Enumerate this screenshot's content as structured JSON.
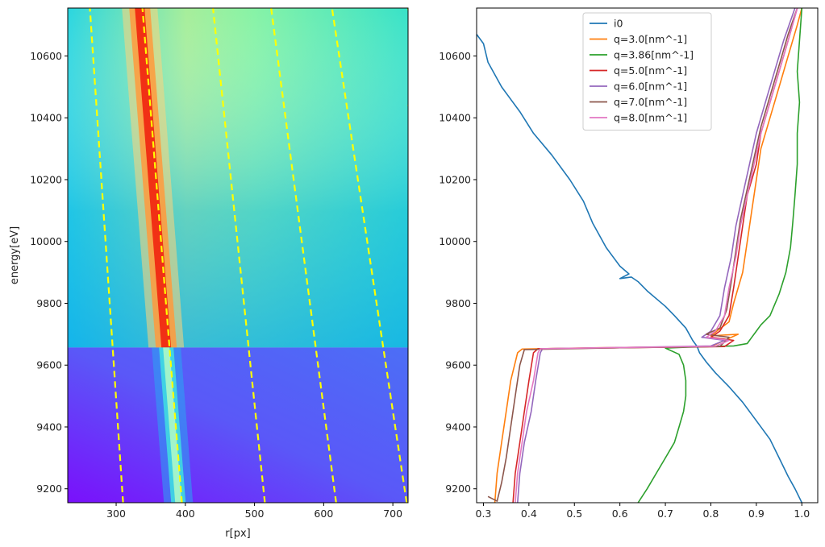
{
  "chart_data": [
    {
      "type": "heatmap",
      "xlabel": "r[px]",
      "ylabel": "energy[eV]",
      "xlim": [
        230,
        722
      ],
      "ylim": [
        9155,
        10755
      ],
      "xticks": [
        300,
        400,
        500,
        600,
        700
      ],
      "yticks": [
        9200,
        9400,
        9600,
        9800,
        10000,
        10200,
        10400,
        10600
      ],
      "colormap": "rainbow",
      "edge_energy": 9657,
      "ridge": {
        "r_at_ymin": 390,
        "r_at_ymax": 334
      },
      "dashed_lines": {
        "color": "#ffff00",
        "r_at_ymin": [
          310,
          395,
          515,
          618,
          720
        ],
        "r_at_ymax": [
          262,
          338,
          440,
          524,
          612,
          722
        ]
      }
    },
    {
      "type": "line",
      "xlim": [
        0.285,
        1.035
      ],
      "ylim": [
        9155,
        10755
      ],
      "xticks": [
        0.3,
        0.4,
        0.5,
        0.6,
        0.7,
        0.8,
        0.9,
        1.0
      ],
      "yticks": [
        9200,
        9400,
        9600,
        9800,
        10000,
        10200,
        10400,
        10600
      ],
      "legend_position": "upper-center",
      "series": [
        {
          "name": "i0",
          "color": "#1f77b4",
          "points": [
            [
              1.0,
              9155
            ],
            [
              0.985,
              9200
            ],
            [
              0.97,
              9240
            ],
            [
              0.95,
              9300
            ],
            [
              0.93,
              9360
            ],
            [
              0.9,
              9420
            ],
            [
              0.87,
              9480
            ],
            [
              0.84,
              9530
            ],
            [
              0.81,
              9575
            ],
            [
              0.79,
              9610
            ],
            [
              0.775,
              9640
            ],
            [
              0.77,
              9660
            ],
            [
              0.76,
              9680
            ],
            [
              0.745,
              9720
            ],
            [
              0.72,
              9760
            ],
            [
              0.7,
              9790
            ],
            [
              0.66,
              9840
            ],
            [
              0.64,
              9870
            ],
            [
              0.625,
              9885
            ],
            [
              0.6,
              9880
            ],
            [
              0.62,
              9895
            ],
            [
              0.6,
              9920
            ],
            [
              0.57,
              9980
            ],
            [
              0.54,
              10060
            ],
            [
              0.52,
              10130
            ],
            [
              0.49,
              10200
            ],
            [
              0.45,
              10280
            ],
            [
              0.41,
              10350
            ],
            [
              0.38,
              10420
            ],
            [
              0.34,
              10500
            ],
            [
              0.31,
              10580
            ],
            [
              0.3,
              10640
            ],
            [
              0.27,
              10700
            ],
            [
              0.255,
              10755
            ]
          ]
        },
        {
          "name": "q=3.0[nm^-1]",
          "color": "#ff7f0e",
          "points": [
            [
              0.325,
              9155
            ],
            [
              0.33,
              9250
            ],
            [
              0.34,
              9350
            ],
            [
              0.35,
              9450
            ],
            [
              0.36,
              9550
            ],
            [
              0.375,
              9640
            ],
            [
              0.385,
              9652
            ],
            [
              0.55,
              9656
            ],
            [
              0.8,
              9660
            ],
            [
              0.86,
              9700
            ],
            [
              0.8,
              9695
            ],
            [
              0.84,
              9740
            ],
            [
              0.85,
              9800
            ],
            [
              0.87,
              9900
            ],
            [
              0.88,
              10000
            ],
            [
              0.89,
              10100
            ],
            [
              0.9,
              10200
            ],
            [
              0.91,
              10300
            ],
            [
              0.93,
              10400
            ],
            [
              0.95,
              10500
            ],
            [
              0.97,
              10600
            ],
            [
              0.99,
              10700
            ],
            [
              1.0,
              10755
            ]
          ]
        },
        {
          "name": "q=3.86[nm^-1]",
          "color": "#2ca02c",
          "points": [
            [
              0.64,
              9155
            ],
            [
              0.66,
              9200
            ],
            [
              0.68,
              9250
            ],
            [
              0.7,
              9300
            ],
            [
              0.72,
              9350
            ],
            [
              0.73,
              9400
            ],
            [
              0.74,
              9450
            ],
            [
              0.745,
              9500
            ],
            [
              0.745,
              9550
            ],
            [
              0.74,
              9600
            ],
            [
              0.73,
              9635
            ],
            [
              0.7,
              9655
            ],
            [
              0.75,
              9658
            ],
            [
              0.85,
              9662
            ],
            [
              0.88,
              9670
            ],
            [
              0.89,
              9690
            ],
            [
              0.9,
              9710
            ],
            [
              0.91,
              9730
            ],
            [
              0.93,
              9760
            ],
            [
              0.95,
              9830
            ],
            [
              0.965,
              9900
            ],
            [
              0.975,
              9980
            ],
            [
              0.98,
              10060
            ],
            [
              0.985,
              10150
            ],
            [
              0.99,
              10250
            ],
            [
              0.99,
              10350
            ],
            [
              0.995,
              10450
            ],
            [
              0.99,
              10550
            ],
            [
              0.995,
              10650
            ],
            [
              1.0,
              10755
            ]
          ]
        },
        {
          "name": "q=5.0[nm^-1]",
          "color": "#d62728",
          "points": [
            [
              0.365,
              9155
            ],
            [
              0.37,
              9250
            ],
            [
              0.38,
              9350
            ],
            [
              0.39,
              9450
            ],
            [
              0.4,
              9550
            ],
            [
              0.41,
              9640
            ],
            [
              0.42,
              9653
            ],
            [
              0.6,
              9656
            ],
            [
              0.83,
              9660
            ],
            [
              0.85,
              9680
            ],
            [
              0.8,
              9690
            ],
            [
              0.82,
              9710
            ],
            [
              0.84,
              9760
            ],
            [
              0.85,
              9850
            ],
            [
              0.86,
              9950
            ],
            [
              0.87,
              10050
            ],
            [
              0.88,
              10150
            ],
            [
              0.9,
              10250
            ],
            [
              0.91,
              10350
            ],
            [
              0.93,
              10450
            ],
            [
              0.95,
              10550
            ],
            [
              0.97,
              10650
            ],
            [
              0.99,
              10755
            ]
          ]
        },
        {
          "name": "q=6.0[nm^-1]",
          "color": "#9467bd",
          "points": [
            [
              0.375,
              9155
            ],
            [
              0.38,
              9250
            ],
            [
              0.39,
              9350
            ],
            [
              0.405,
              9450
            ],
            [
              0.415,
              9550
            ],
            [
              0.425,
              9640
            ],
            [
              0.43,
              9653
            ],
            [
              0.6,
              9657
            ],
            [
              0.8,
              9662
            ],
            [
              0.83,
              9680
            ],
            [
              0.78,
              9690
            ],
            [
              0.8,
              9710
            ],
            [
              0.82,
              9760
            ],
            [
              0.83,
              9850
            ],
            [
              0.845,
              9950
            ],
            [
              0.855,
              10050
            ],
            [
              0.87,
              10150
            ],
            [
              0.885,
              10250
            ],
            [
              0.9,
              10350
            ],
            [
              0.92,
              10450
            ],
            [
              0.94,
              10550
            ],
            [
              0.96,
              10650
            ],
            [
              0.985,
              10755
            ]
          ]
        },
        {
          "name": "q=7.0[nm^-1]",
          "color": "#8c564b",
          "points": [
            [
              0.31,
              9175
            ],
            [
              0.33,
              9160
            ],
            [
              0.34,
              9220
            ],
            [
              0.35,
              9300
            ],
            [
              0.36,
              9400
            ],
            [
              0.37,
              9500
            ],
            [
              0.38,
              9600
            ],
            [
              0.39,
              9650
            ],
            [
              0.6,
              9656
            ],
            [
              0.82,
              9660
            ],
            [
              0.84,
              9690
            ],
            [
              0.79,
              9700
            ],
            [
              0.82,
              9720
            ],
            [
              0.835,
              9780
            ],
            [
              0.845,
              9870
            ],
            [
              0.855,
              9970
            ],
            [
              0.865,
              10070
            ],
            [
              0.88,
              10170
            ],
            [
              0.895,
              10270
            ],
            [
              0.91,
              10370
            ],
            [
              0.93,
              10470
            ],
            [
              0.95,
              10570
            ],
            [
              0.97,
              10670
            ],
            [
              0.99,
              10755
            ]
          ]
        },
        {
          "name": "q=8.0[nm^-1]",
          "color": "#e377c2",
          "points": [
            [
              0.37,
              9155
            ],
            [
              0.375,
              9250
            ],
            [
              0.385,
              9350
            ],
            [
              0.395,
              9450
            ],
            [
              0.41,
              9550
            ],
            [
              0.42,
              9640
            ],
            [
              0.425,
              9653
            ],
            [
              0.6,
              9657
            ],
            [
              0.81,
              9661
            ],
            [
              0.84,
              9680
            ],
            [
              0.79,
              9690
            ],
            [
              0.81,
              9710
            ],
            [
              0.83,
              9760
            ],
            [
              0.84,
              9850
            ],
            [
              0.855,
              9950
            ],
            [
              0.865,
              10050
            ],
            [
              0.88,
              10150
            ],
            [
              0.895,
              10250
            ],
            [
              0.91,
              10350
            ],
            [
              0.93,
              10450
            ],
            [
              0.95,
              10550
            ],
            [
              0.97,
              10650
            ],
            [
              0.99,
              10755
            ]
          ]
        }
      ]
    }
  ]
}
